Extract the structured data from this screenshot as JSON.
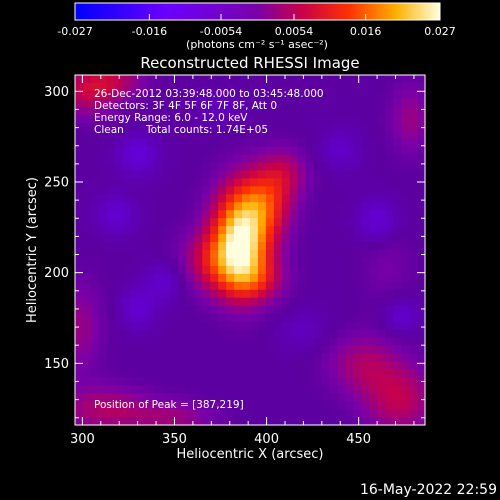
{
  "chart_data": {
    "type": "heatmap",
    "title": "Reconstructed RHESSI Image",
    "xlabel": "Heliocentric X (arcsec)",
    "ylabel": "Heliocentric Y (arcsec)",
    "xlim": [
      296,
      486
    ],
    "ylim": [
      116,
      309
    ],
    "x_ticks": [
      300,
      350,
      400,
      450
    ],
    "y_ticks": [
      150,
      200,
      250,
      300
    ],
    "colorbar": {
      "ticks": [
        "-0.027",
        "-0.016",
        "-0.0054",
        "0.0054",
        "0.016",
        "0.027"
      ],
      "unit_label": "(photons cm⁻² s⁻¹ asec⁻²)",
      "range": [
        -0.027,
        0.027
      ]
    },
    "annotations": {
      "time_range": "26-Dec-2012 03:39:48.000 to 03:45:48.000",
      "detectors": "Detectors: 3F 4F 5F 6F 7F 8F, Att 0",
      "energy_range": "Energy Range: 6.0 - 12.0 keV",
      "method": "Clean",
      "total_counts": "Total counts: 1.74E+05",
      "peak": "Position of Peak = [387,219]"
    },
    "peak_position": [
      387,
      219
    ],
    "sources": [
      {
        "x": 386,
        "y": 219,
        "amp": 0.027,
        "sx": 11,
        "sy": 20
      },
      {
        "x": 400,
        "y": 238,
        "amp": 0.012,
        "sx": 10,
        "sy": 14
      },
      {
        "x": 373,
        "y": 206,
        "amp": 0.01,
        "sx": 14,
        "sy": 12
      },
      {
        "x": 395,
        "y": 196,
        "amp": 0.008,
        "sx": 11,
        "sy": 9
      },
      {
        "x": 410,
        "y": 255,
        "amp": 0.007,
        "sx": 9,
        "sy": 10
      },
      {
        "x": 302,
        "y": 300,
        "amp": 0.009,
        "sx": 12,
        "sy": 10
      },
      {
        "x": 318,
        "y": 306,
        "amp": 0.007,
        "sx": 12,
        "sy": 7
      },
      {
        "x": 298,
        "y": 170,
        "amp": 0.006,
        "sx": 9,
        "sy": 18
      },
      {
        "x": 312,
        "y": 125,
        "amp": 0.008,
        "sx": 18,
        "sy": 9
      },
      {
        "x": 350,
        "y": 120,
        "amp": 0.006,
        "sx": 16,
        "sy": 7
      },
      {
        "x": 452,
        "y": 150,
        "amp": 0.007,
        "sx": 14,
        "sy": 12
      },
      {
        "x": 472,
        "y": 130,
        "amp": 0.009,
        "sx": 14,
        "sy": 14
      },
      {
        "x": 478,
        "y": 285,
        "amp": 0.006,
        "sx": 8,
        "sy": 14
      },
      {
        "x": 465,
        "y": 205,
        "amp": 0.003,
        "sx": 10,
        "sy": 16
      },
      {
        "x": 330,
        "y": 265,
        "amp": -0.006,
        "sx": 8,
        "sy": 8
      },
      {
        "x": 318,
        "y": 232,
        "amp": -0.005,
        "sx": 8,
        "sy": 8
      },
      {
        "x": 345,
        "y": 195,
        "amp": -0.005,
        "sx": 8,
        "sy": 8
      },
      {
        "x": 460,
        "y": 228,
        "amp": -0.006,
        "sx": 8,
        "sy": 9
      },
      {
        "x": 330,
        "y": 180,
        "amp": -0.005,
        "sx": 7,
        "sy": 8
      },
      {
        "x": 440,
        "y": 268,
        "amp": -0.004,
        "sx": 8,
        "sy": 8
      },
      {
        "x": 473,
        "y": 176,
        "amp": -0.005,
        "sx": 7,
        "sy": 7
      },
      {
        "x": 375,
        "y": 290,
        "amp": -0.003,
        "sx": 9,
        "sy": 6
      },
      {
        "x": 420,
        "y": 168,
        "amp": -0.003,
        "sx": 10,
        "sy": 8
      }
    ],
    "background_level": -0.0035
  },
  "footer": {
    "timestamp": "16-May-2022 22:59"
  }
}
